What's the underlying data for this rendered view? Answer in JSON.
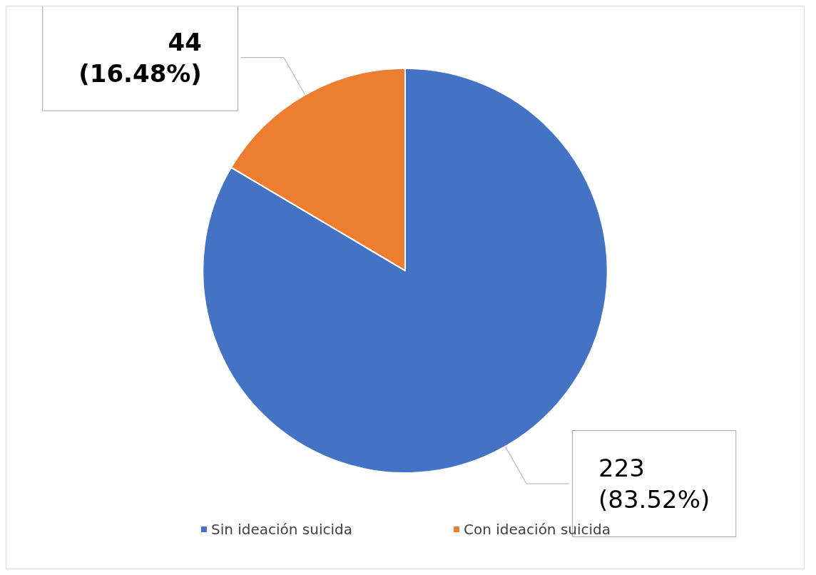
{
  "chart_data": {
    "type": "pie",
    "categories": [
      "Sin ideación suicida",
      "Con ideación suicida"
    ],
    "values": [
      223,
      44
    ],
    "colors": [
      "#4472c4",
      "#ed7d31"
    ],
    "value_labels": [
      "223\n(83.52%)",
      "44\n(16.48%)"
    ],
    "legend": "bottom"
  }
}
